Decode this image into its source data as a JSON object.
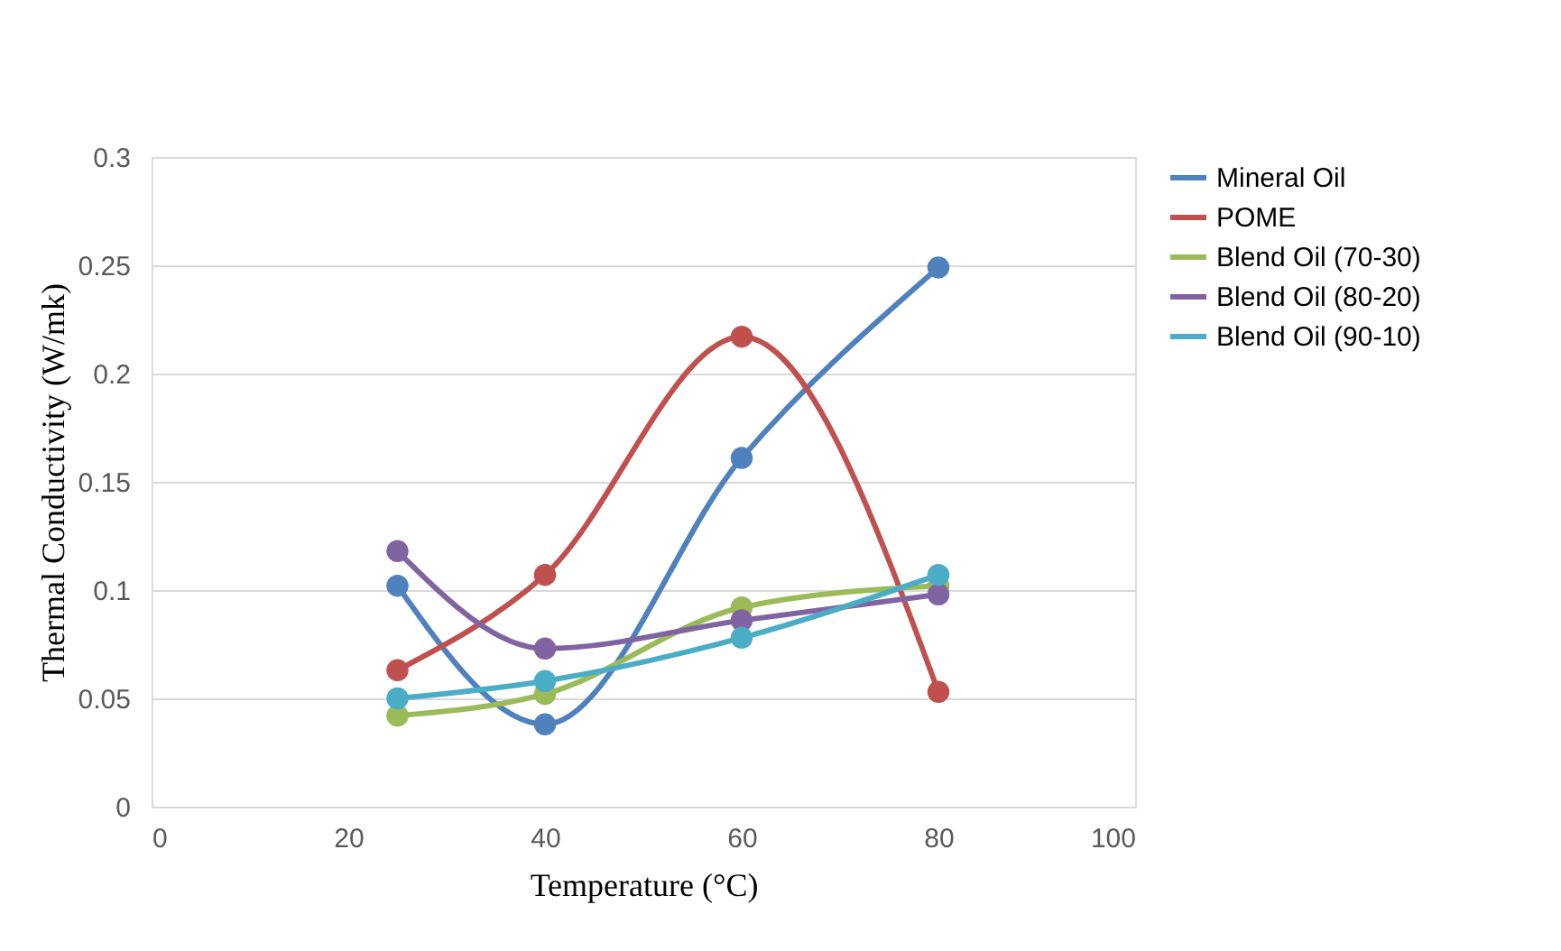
{
  "chart_data": {
    "type": "line",
    "xlabel": "Temperature (°C)",
    "ylabel": "Thermal Conductivity (W/mk)",
    "x": [
      25,
      40,
      60,
      80
    ],
    "series": [
      {
        "name": "Mineral Oil",
        "color": "#4f81bd",
        "values": [
          0.102,
          0.038,
          0.161,
          0.249
        ]
      },
      {
        "name": "POME",
        "color": "#c0504d",
        "values": [
          0.063,
          0.107,
          0.217,
          0.053
        ]
      },
      {
        "name": "Blend Oil (70-30)",
        "color": "#9bbb59",
        "values": [
          0.042,
          0.052,
          0.092,
          0.102
        ]
      },
      {
        "name": "Blend Oil (80-20)",
        "color": "#8064a2",
        "values": [
          0.118,
          0.073,
          0.086,
          0.098
        ]
      },
      {
        "name": "Blend Oil (90-10)",
        "color": "#4bacc6",
        "values": [
          0.05,
          0.058,
          0.078,
          0.107
        ]
      }
    ],
    "xlim": [
      0,
      100
    ],
    "xticks": [
      0,
      20,
      40,
      60,
      80,
      100
    ],
    "ylim": [
      0,
      0.3
    ],
    "yticks": [
      0,
      0.05,
      0.1,
      0.15,
      0.2,
      0.25,
      0.3
    ],
    "grid": "y",
    "legend": "right",
    "marker": "circle",
    "line_style": "solid"
  }
}
